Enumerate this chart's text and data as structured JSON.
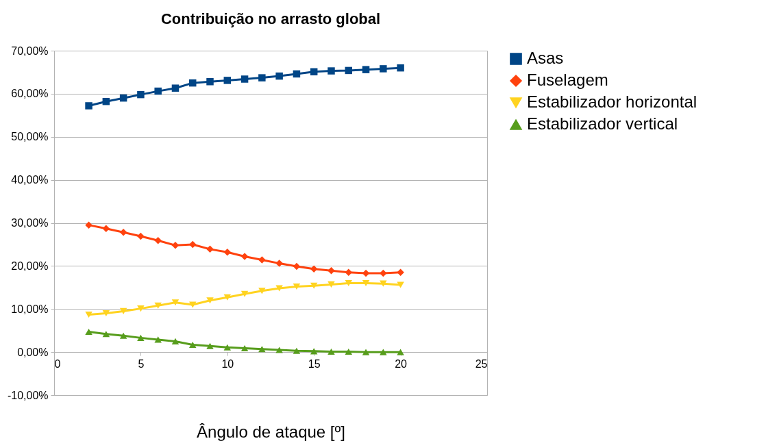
{
  "chart_data": {
    "type": "line",
    "title": "Contribuição no arrasto global",
    "xlabel": "Ângulo de ataque [º]",
    "x": [
      2,
      3,
      4,
      5,
      6,
      7,
      8,
      9,
      10,
      11,
      12,
      13,
      14,
      15,
      16,
      17,
      18,
      19,
      20
    ],
    "series": [
      {
        "name": "Asas",
        "color": "#004586",
        "marker": "square",
        "values": [
          57.2,
          58.2,
          59.0,
          59.8,
          60.6,
          61.3,
          62.5,
          62.8,
          63.1,
          63.4,
          63.7,
          64.1,
          64.6,
          65.1,
          65.3,
          65.4,
          65.6,
          65.8,
          66.0
        ]
      },
      {
        "name": "Fuselagem",
        "color": "#ff420e",
        "marker": "diamond",
        "values": [
          29.5,
          28.7,
          27.8,
          26.9,
          25.9,
          24.8,
          25.0,
          23.9,
          23.2,
          22.2,
          21.4,
          20.6,
          19.9,
          19.3,
          18.9,
          18.5,
          18.3,
          18.3,
          18.5
        ]
      },
      {
        "name": "Estabilizador horizontal",
        "color": "#ffd320",
        "marker": "triangle-down",
        "values": [
          8.7,
          9.0,
          9.5,
          10.1,
          10.8,
          11.5,
          11.0,
          12.0,
          12.7,
          13.5,
          14.2,
          14.8,
          15.2,
          15.4,
          15.7,
          16.0,
          16.0,
          15.9,
          15.6
        ]
      },
      {
        "name": "Estabilizador vertical",
        "color": "#579d1c",
        "marker": "triangle",
        "values": [
          4.7,
          4.2,
          3.8,
          3.3,
          2.9,
          2.5,
          1.7,
          1.4,
          1.1,
          0.9,
          0.7,
          0.5,
          0.3,
          0.2,
          0.1,
          0.1,
          0.0,
          0.0,
          0.0
        ]
      }
    ],
    "xlim": [
      0,
      25
    ],
    "xticks": [
      0,
      5,
      10,
      15,
      20,
      25
    ],
    "ylim": [
      -10,
      70
    ],
    "yticks": [
      {
        "value": -10,
        "label": "-10,00%"
      },
      {
        "value": 0,
        "label": "0,00%"
      },
      {
        "value": 10,
        "label": "10,00%"
      },
      {
        "value": 20,
        "label": "20,00%"
      },
      {
        "value": 30,
        "label": "30,00%"
      },
      {
        "value": 40,
        "label": "40,00%"
      },
      {
        "value": 50,
        "label": "50,00%"
      },
      {
        "value": 60,
        "label": "60,00%"
      },
      {
        "value": 70,
        "label": "70,00%"
      }
    ],
    "grid": "y",
    "legend": "right",
    "line_style": "solid"
  }
}
